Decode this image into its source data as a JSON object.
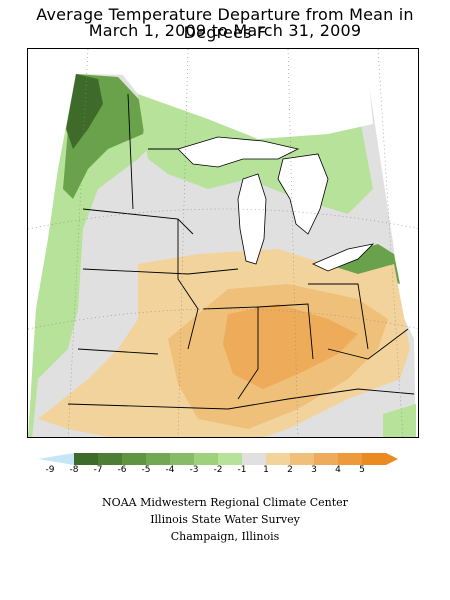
{
  "title": {
    "line1": "Average Temperature Departure from Mean in Degrees F",
    "line2": "March 1, 2009 to March 31, 2009"
  },
  "legend": {
    "labels": [
      "-9",
      "-8",
      "-7",
      "-6",
      "-5",
      "-4",
      "-3",
      "-2",
      "-1",
      "1",
      "2",
      "3",
      "4",
      "5"
    ],
    "colors": [
      "#c6e6f7",
      "#3f6b2a",
      "#4d7e35",
      "#5e9442",
      "#72a852",
      "#88bb66",
      "#9fd07c",
      "#b7e29a",
      "#e0e0e0",
      "#f3d39c",
      "#efc07a",
      "#eeab59",
      "#ec9a3c",
      "#ea8a1f"
    ]
  },
  "map": {
    "categories": [
      "below normal (green)",
      "near normal (gray)",
      "above normal (orange)"
    ],
    "colors": {
      "dark_green": "#3f6b2a",
      "mid_green": "#6aa24c",
      "light_green": "#b7e29a",
      "near_normal": "#e0e0e0",
      "light_orange": "#f3d39c",
      "orange": "#efc07a",
      "deep_orange": "#eeab59"
    }
  },
  "credits": {
    "line1": "NOAA Midwestern Regional Climate Center",
    "line2": "Illinois State Water Survey",
    "line3": "Champaign, Illinois"
  }
}
